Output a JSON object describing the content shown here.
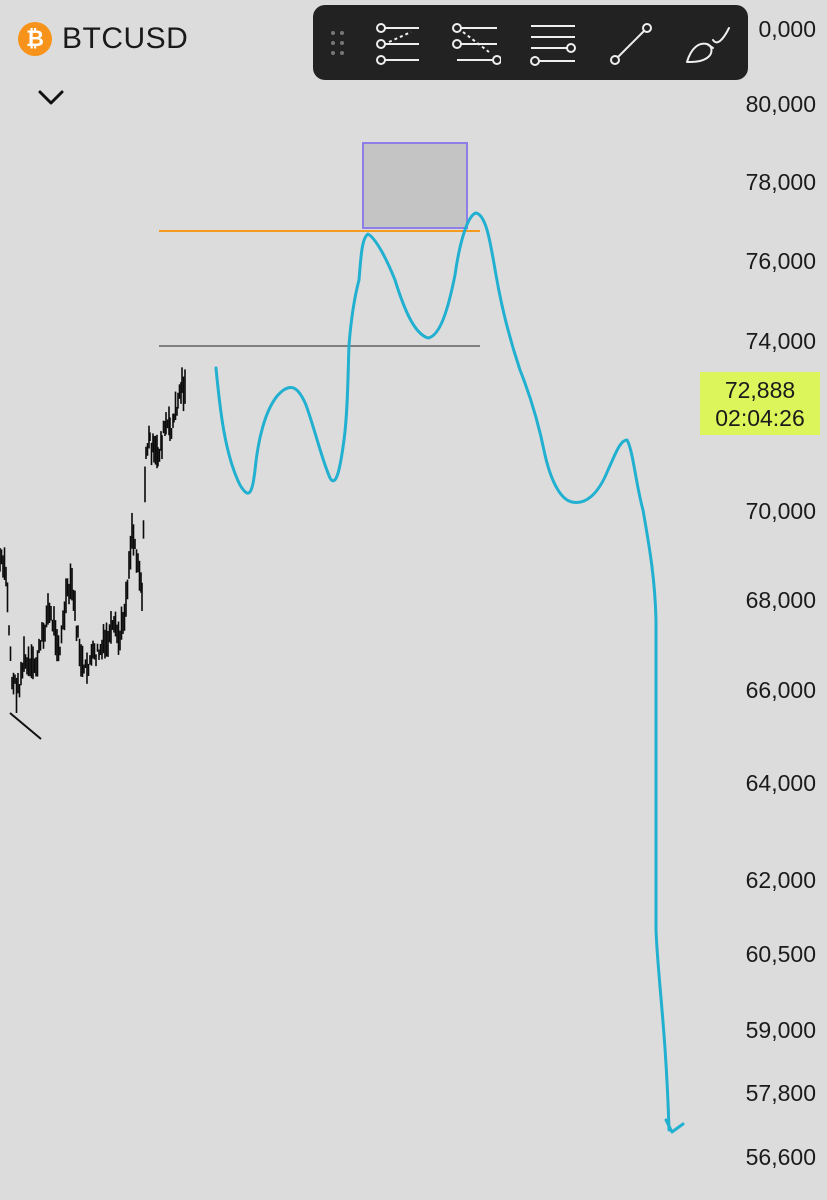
{
  "header": {
    "symbol": "BTCUSD",
    "logo_glyph": "₿",
    "logo_color": "#f7931a",
    "collapse_icon": "chevron-down-icon"
  },
  "toolbar": {
    "background": "#222222",
    "tools": [
      {
        "name": "channel-tool-icon"
      },
      {
        "name": "pitchfork-tool-icon"
      },
      {
        "name": "horizontal-lines-tool-icon"
      },
      {
        "name": "trend-line-tool-icon"
      },
      {
        "name": "brush-tool-icon"
      }
    ]
  },
  "price_axis": {
    "ticks": [
      "80,000",
      "78,000",
      "76,000",
      "74,000",
      "70,000",
      "68,000",
      "66,000",
      "64,000",
      "62,000",
      "60,500",
      "59,000",
      "57,800",
      "56,600"
    ],
    "partial_top": "0,000"
  },
  "current_price": {
    "price": "72,888",
    "countdown": "02:04:26",
    "color": "#dcf55a"
  },
  "drawings": {
    "resistance_color": "#f59b1e",
    "support_color": "#808080",
    "projection_color": "#22b0d0",
    "box_border": "#8e7ee8",
    "box_fill": "#c4c4c4"
  }
}
